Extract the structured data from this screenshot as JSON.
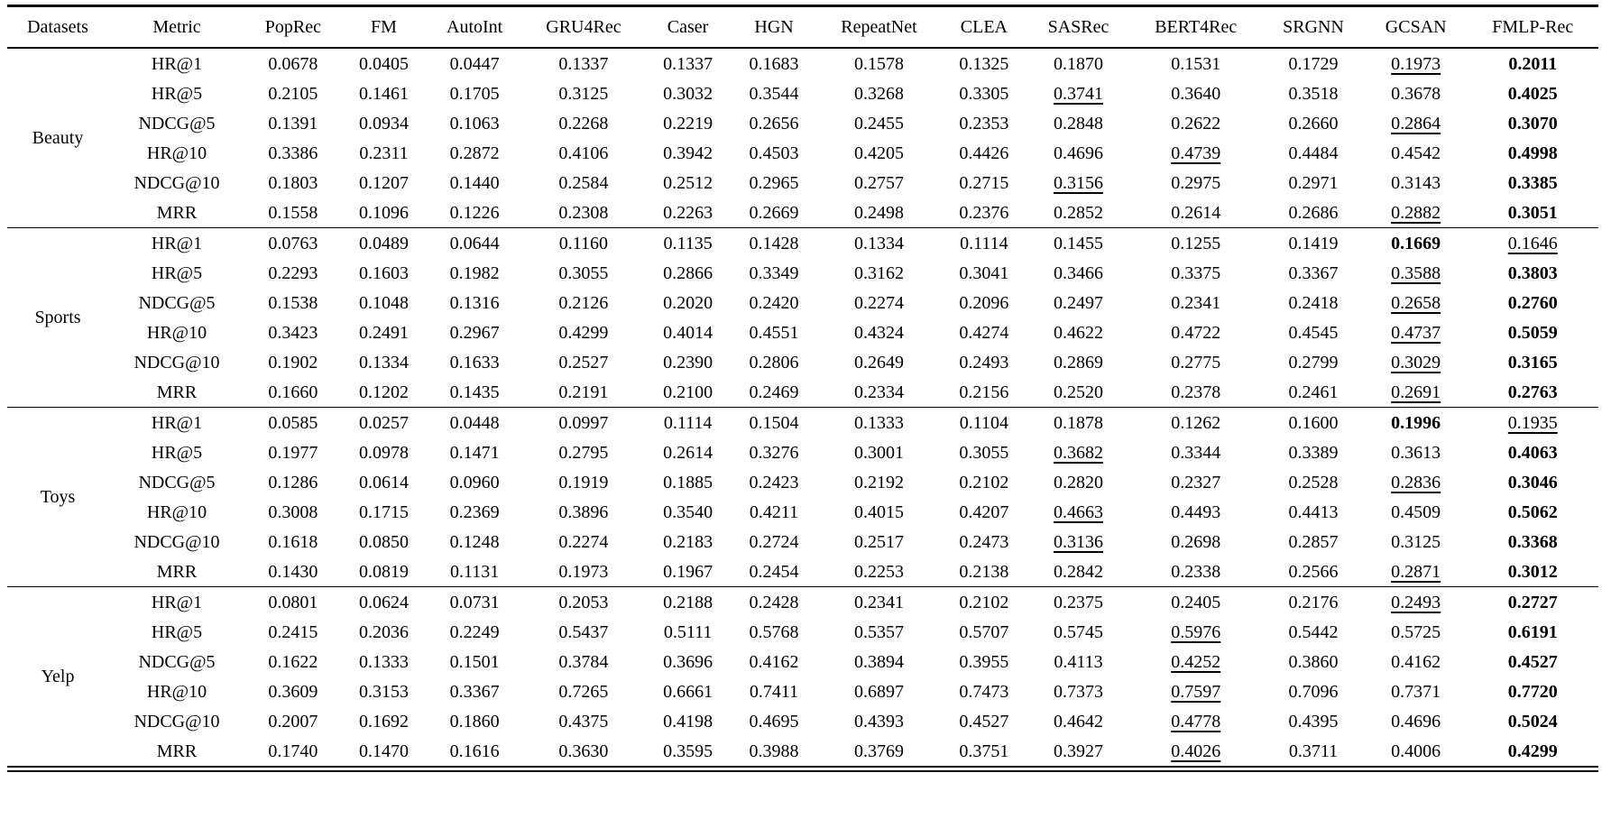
{
  "table": {
    "columns": [
      "Datasets",
      "Metric",
      "PopRec",
      "FM",
      "AutoInt",
      "GRU4Rec",
      "Caser",
      "HGN",
      "RepeatNet",
      "CLEA",
      "SASRec",
      "BERT4Rec",
      "SRGNN",
      "GCSAN",
      "FMLP-Rec"
    ],
    "style_legend": {
      "bold": "best result",
      "underline": "second-best result"
    },
    "groups": [
      {
        "dataset": "Beauty",
        "rows": [
          {
            "metric": "HR@1",
            "values": [
              "0.0678",
              "0.0405",
              "0.0447",
              "0.1337",
              "0.1337",
              "0.1683",
              "0.1578",
              "0.1325",
              "0.1870",
              "0.1531",
              "0.1729",
              "0.1973",
              "0.2011"
            ],
            "bold": 12,
            "underline": 11
          },
          {
            "metric": "HR@5",
            "values": [
              "0.2105",
              "0.1461",
              "0.1705",
              "0.3125",
              "0.3032",
              "0.3544",
              "0.3268",
              "0.3305",
              "0.3741",
              "0.3640",
              "0.3518",
              "0.3678",
              "0.4025"
            ],
            "bold": 12,
            "underline": 8
          },
          {
            "metric": "NDCG@5",
            "values": [
              "0.1391",
              "0.0934",
              "0.1063",
              "0.2268",
              "0.2219",
              "0.2656",
              "0.2455",
              "0.2353",
              "0.2848",
              "0.2622",
              "0.2660",
              "0.2864",
              "0.3070"
            ],
            "bold": 12,
            "underline": 11
          },
          {
            "metric": "HR@10",
            "values": [
              "0.3386",
              "0.2311",
              "0.2872",
              "0.4106",
              "0.3942",
              "0.4503",
              "0.4205",
              "0.4426",
              "0.4696",
              "0.4739",
              "0.4484",
              "0.4542",
              "0.4998"
            ],
            "bold": 12,
            "underline": 9
          },
          {
            "metric": "NDCG@10",
            "values": [
              "0.1803",
              "0.1207",
              "0.1440",
              "0.2584",
              "0.2512",
              "0.2965",
              "0.2757",
              "0.2715",
              "0.3156",
              "0.2975",
              "0.2971",
              "0.3143",
              "0.3385"
            ],
            "bold": 12,
            "underline": 8
          },
          {
            "metric": "MRR",
            "values": [
              "0.1558",
              "0.1096",
              "0.1226",
              "0.2308",
              "0.2263",
              "0.2669",
              "0.2498",
              "0.2376",
              "0.2852",
              "0.2614",
              "0.2686",
              "0.2882",
              "0.3051"
            ],
            "bold": 12,
            "underline": 11
          }
        ]
      },
      {
        "dataset": "Sports",
        "rows": [
          {
            "metric": "HR@1",
            "values": [
              "0.0763",
              "0.0489",
              "0.0644",
              "0.1160",
              "0.1135",
              "0.1428",
              "0.1334",
              "0.1114",
              "0.1455",
              "0.1255",
              "0.1419",
              "0.1669",
              "0.1646"
            ],
            "bold": 11,
            "underline": 12
          },
          {
            "metric": "HR@5",
            "values": [
              "0.2293",
              "0.1603",
              "0.1982",
              "0.3055",
              "0.2866",
              "0.3349",
              "0.3162",
              "0.3041",
              "0.3466",
              "0.3375",
              "0.3367",
              "0.3588",
              "0.3803"
            ],
            "bold": 12,
            "underline": 11
          },
          {
            "metric": "NDCG@5",
            "values": [
              "0.1538",
              "0.1048",
              "0.1316",
              "0.2126",
              "0.2020",
              "0.2420",
              "0.2274",
              "0.2096",
              "0.2497",
              "0.2341",
              "0.2418",
              "0.2658",
              "0.2760"
            ],
            "bold": 12,
            "underline": 11
          },
          {
            "metric": "HR@10",
            "values": [
              "0.3423",
              "0.2491",
              "0.2967",
              "0.4299",
              "0.4014",
              "0.4551",
              "0.4324",
              "0.4274",
              "0.4622",
              "0.4722",
              "0.4545",
              "0.4737",
              "0.5059"
            ],
            "bold": 12,
            "underline": 11
          },
          {
            "metric": "NDCG@10",
            "values": [
              "0.1902",
              "0.1334",
              "0.1633",
              "0.2527",
              "0.2390",
              "0.2806",
              "0.2649",
              "0.2493",
              "0.2869",
              "0.2775",
              "0.2799",
              "0.3029",
              "0.3165"
            ],
            "bold": 12,
            "underline": 11
          },
          {
            "metric": "MRR",
            "values": [
              "0.1660",
              "0.1202",
              "0.1435",
              "0.2191",
              "0.2100",
              "0.2469",
              "0.2334",
              "0.2156",
              "0.2520",
              "0.2378",
              "0.2461",
              "0.2691",
              "0.2763"
            ],
            "bold": 12,
            "underline": 11
          }
        ]
      },
      {
        "dataset": "Toys",
        "rows": [
          {
            "metric": "HR@1",
            "values": [
              "0.0585",
              "0.0257",
              "0.0448",
              "0.0997",
              "0.1114",
              "0.1504",
              "0.1333",
              "0.1104",
              "0.1878",
              "0.1262",
              "0.1600",
              "0.1996",
              "0.1935"
            ],
            "bold": 11,
            "underline": 12
          },
          {
            "metric": "HR@5",
            "values": [
              "0.1977",
              "0.0978",
              "0.1471",
              "0.2795",
              "0.2614",
              "0.3276",
              "0.3001",
              "0.3055",
              "0.3682",
              "0.3344",
              "0.3389",
              "0.3613",
              "0.4063"
            ],
            "bold": 12,
            "underline": 8
          },
          {
            "metric": "NDCG@5",
            "values": [
              "0.1286",
              "0.0614",
              "0.0960",
              "0.1919",
              "0.1885",
              "0.2423",
              "0.2192",
              "0.2102",
              "0.2820",
              "0.2327",
              "0.2528",
              "0.2836",
              "0.3046"
            ],
            "bold": 12,
            "underline": 11
          },
          {
            "metric": "HR@10",
            "values": [
              "0.3008",
              "0.1715",
              "0.2369",
              "0.3896",
              "0.3540",
              "0.4211",
              "0.4015",
              "0.4207",
              "0.4663",
              "0.4493",
              "0.4413",
              "0.4509",
              "0.5062"
            ],
            "bold": 12,
            "underline": 8
          },
          {
            "metric": "NDCG@10",
            "values": [
              "0.1618",
              "0.0850",
              "0.1248",
              "0.2274",
              "0.2183",
              "0.2724",
              "0.2517",
              "0.2473",
              "0.3136",
              "0.2698",
              "0.2857",
              "0.3125",
              "0.3368"
            ],
            "bold": 12,
            "underline": 8
          },
          {
            "metric": "MRR",
            "values": [
              "0.1430",
              "0.0819",
              "0.1131",
              "0.1973",
              "0.1967",
              "0.2454",
              "0.2253",
              "0.2138",
              "0.2842",
              "0.2338",
              "0.2566",
              "0.2871",
              "0.3012"
            ],
            "bold": 12,
            "underline": 11
          }
        ]
      },
      {
        "dataset": "Yelp",
        "rows": [
          {
            "metric": "HR@1",
            "values": [
              "0.0801",
              "0.0624",
              "0.0731",
              "0.2053",
              "0.2188",
              "0.2428",
              "0.2341",
              "0.2102",
              "0.2375",
              "0.2405",
              "0.2176",
              "0.2493",
              "0.2727"
            ],
            "bold": 12,
            "underline": 11
          },
          {
            "metric": "HR@5",
            "values": [
              "0.2415",
              "0.2036",
              "0.2249",
              "0.5437",
              "0.5111",
              "0.5768",
              "0.5357",
              "0.5707",
              "0.5745",
              "0.5976",
              "0.5442",
              "0.5725",
              "0.6191"
            ],
            "bold": 12,
            "underline": 9
          },
          {
            "metric": "NDCG@5",
            "values": [
              "0.1622",
              "0.1333",
              "0.1501",
              "0.3784",
              "0.3696",
              "0.4162",
              "0.3894",
              "0.3955",
              "0.4113",
              "0.4252",
              "0.3860",
              "0.4162",
              "0.4527"
            ],
            "bold": 12,
            "underline": 9
          },
          {
            "metric": "HR@10",
            "values": [
              "0.3609",
              "0.3153",
              "0.3367",
              "0.7265",
              "0.6661",
              "0.7411",
              "0.6897",
              "0.7473",
              "0.7373",
              "0.7597",
              "0.7096",
              "0.7371",
              "0.7720"
            ],
            "bold": 12,
            "underline": 9
          },
          {
            "metric": "NDCG@10",
            "values": [
              "0.2007",
              "0.1692",
              "0.1860",
              "0.4375",
              "0.4198",
              "0.4695",
              "0.4393",
              "0.4527",
              "0.4642",
              "0.4778",
              "0.4395",
              "0.4696",
              "0.5024"
            ],
            "bold": 12,
            "underline": 9
          },
          {
            "metric": "MRR",
            "values": [
              "0.1740",
              "0.1470",
              "0.1616",
              "0.3630",
              "0.3595",
              "0.3988",
              "0.3769",
              "0.3751",
              "0.3927",
              "0.4026",
              "0.3711",
              "0.4006",
              "0.4299"
            ],
            "bold": 12,
            "underline": 9
          }
        ]
      }
    ]
  }
}
